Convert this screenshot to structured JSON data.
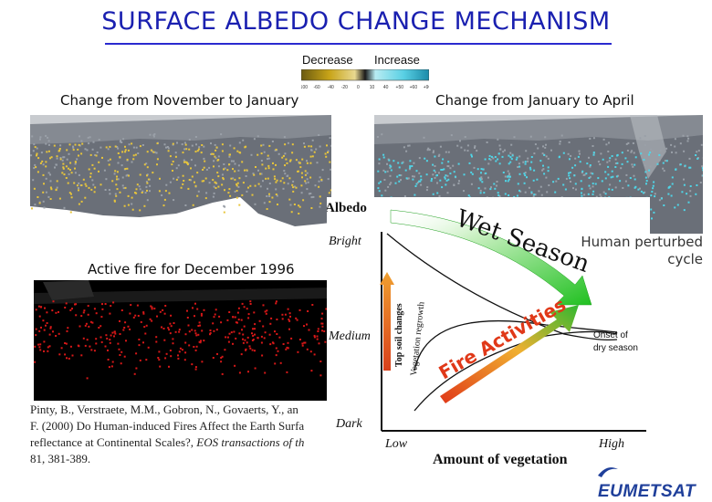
{
  "title": "SURFACE ALBEDO CHANGE MECHANISM",
  "scale": {
    "decrease_label": "Decrease",
    "increase_label": "Increase",
    "ticks": [
      "-100",
      "-60",
      "-40",
      "-20",
      "0",
      "10",
      "40",
      "+50",
      "+60",
      "+90"
    ]
  },
  "panels": {
    "nov_jan": "Change from November to January",
    "jan_apr": "Change from January to April",
    "fire": "Active fire for December 1996"
  },
  "citation": {
    "line1": "Pinty, B., Verstraete, M.M., Gobron, N., Govaerts, Y., an",
    "line2": "F. (2000) Do Human-induced Fires Affect the Earth Surfa",
    "line3_prefix": "reflectance at Continental Scales?, ",
    "line3_italic": "EOS transactions of th",
    "line4": "81, 381-389."
  },
  "diagram": {
    "y_title": "Albedo",
    "y_bright": "Bright",
    "y_medium": "Medium",
    "y_dark": "Dark",
    "x_low": "Low",
    "x_high": "High",
    "x_title": "Amount of vegetation",
    "wet_season": "Wet Season",
    "fire_activities": "Fire Activities",
    "top_soil": "Top soil changes",
    "veg_regrowth": "Vegetation regrowth",
    "onset_line1": "Onset of",
    "onset_line2": "dry season"
  },
  "human_perturbed_line1": "Human perturbed",
  "human_perturbed_line2": "cycle",
  "logo": "EUMETSAT",
  "colors": {
    "title": "#1a20b0",
    "map_grey": "#6a6f78",
    "decrease_yellow": "#e8c53a",
    "increase_cyan": "#4fd6e8",
    "fire_red": "#d81818",
    "wet_green": "#3cc83c",
    "fire_orange": "#e85020"
  }
}
